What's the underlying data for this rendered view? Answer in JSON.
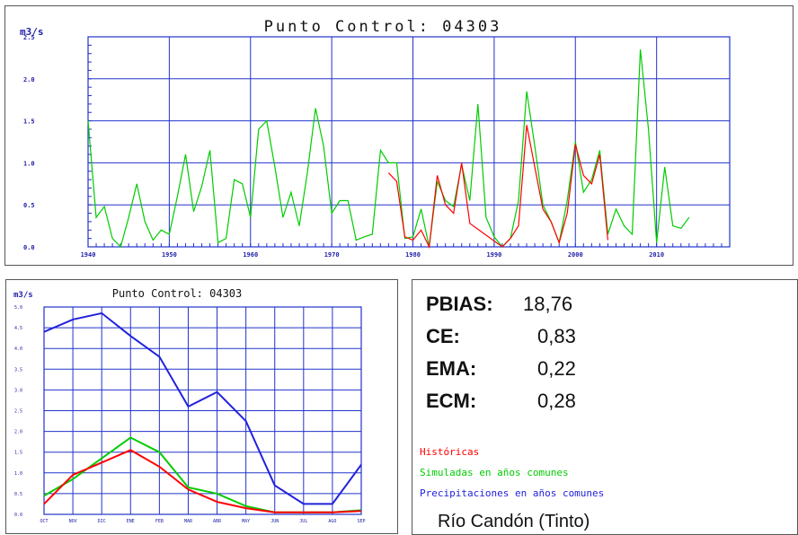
{
  "chart_data": [
    {
      "type": "line",
      "title": "Punto Control: 04303",
      "ylabel": "m3/s",
      "xlabel": "",
      "xlim": [
        1940,
        2019
      ],
      "ylim": [
        0,
        2.5
      ],
      "y_ticks": [
        "0.0",
        "0.5",
        "1.0",
        "1.5",
        "2.0",
        "2.5"
      ],
      "x_ticks": [
        "1940",
        "1950",
        "1960",
        "1970",
        "1980",
        "1990",
        "2000",
        "2010"
      ],
      "grid": true,
      "series": [
        {
          "color": "#00cc00",
          "points": [
            [
              1940,
              1.5
            ],
            [
              1941,
              0.35
            ],
            [
              1942,
              0.48
            ],
            [
              1943,
              0.1
            ],
            [
              1944,
              0.0
            ],
            [
              1945,
              0.35
            ],
            [
              1946,
              0.75
            ],
            [
              1947,
              0.3
            ],
            [
              1948,
              0.08
            ],
            [
              1949,
              0.2
            ],
            [
              1950,
              0.15
            ],
            [
              1951,
              0.6
            ],
            [
              1952,
              1.1
            ],
            [
              1953,
              0.42
            ],
            [
              1954,
              0.72
            ],
            [
              1955,
              1.15
            ],
            [
              1956,
              0.05
            ],
            [
              1957,
              0.1
            ],
            [
              1958,
              0.8
            ],
            [
              1959,
              0.75
            ],
            [
              1960,
              0.35
            ],
            [
              1961,
              1.4
            ],
            [
              1962,
              1.5
            ],
            [
              1963,
              0.95
            ],
            [
              1964,
              0.35
            ],
            [
              1965,
              0.65
            ],
            [
              1966,
              0.25
            ],
            [
              1967,
              0.88
            ],
            [
              1968,
              1.65
            ],
            [
              1969,
              1.2
            ],
            [
              1970,
              0.4
            ],
            [
              1971,
              0.55
            ],
            [
              1972,
              0.55
            ],
            [
              1973,
              0.08
            ],
            [
              1974,
              0.12
            ],
            [
              1975,
              0.15
            ],
            [
              1976,
              1.15
            ],
            [
              1977,
              1.0
            ],
            [
              1978,
              1.0
            ],
            [
              1979,
              0.1
            ],
            [
              1980,
              0.12
            ],
            [
              1981,
              0.45
            ],
            [
              1982,
              0.0
            ],
            [
              1983,
              0.78
            ],
            [
              1984,
              0.55
            ],
            [
              1985,
              0.48
            ],
            [
              1986,
              0.98
            ],
            [
              1987,
              0.55
            ],
            [
              1988,
              1.7
            ],
            [
              1989,
              0.35
            ],
            [
              1990,
              0.12
            ],
            [
              1991,
              0.0
            ],
            [
              1992,
              0.1
            ],
            [
              1993,
              0.55
            ],
            [
              1994,
              1.85
            ],
            [
              1995,
              1.2
            ],
            [
              1996,
              0.5
            ],
            [
              1997,
              0.3
            ],
            [
              1998,
              0.05
            ],
            [
              1999,
              0.55
            ],
            [
              2000,
              1.25
            ],
            [
              2001,
              0.65
            ],
            [
              2002,
              0.8
            ],
            [
              2003,
              1.15
            ],
            [
              2004,
              0.15
            ],
            [
              2005,
              0.45
            ],
            [
              2006,
              0.25
            ],
            [
              2007,
              0.15
            ],
            [
              2008,
              2.35
            ],
            [
              2009,
              1.4
            ],
            [
              2010,
              0.05
            ],
            [
              2011,
              0.95
            ],
            [
              2012,
              0.25
            ],
            [
              2013,
              0.22
            ],
            [
              2014,
              0.35
            ]
          ]
        },
        {
          "color": "#ff0000",
          "points": [
            [
              1977,
              0.88
            ],
            [
              1978,
              0.78
            ],
            [
              1979,
              0.12
            ],
            [
              1980,
              0.08
            ],
            [
              1981,
              0.2
            ],
            [
              1982,
              0.0
            ],
            [
              1983,
              0.85
            ],
            [
              1984,
              0.5
            ],
            [
              1985,
              0.4
            ],
            [
              1986,
              1.0
            ],
            [
              1987,
              0.28
            ],
            [
              1991,
              0.0
            ],
            [
              1992,
              0.1
            ],
            [
              1993,
              0.25
            ],
            [
              1994,
              1.45
            ],
            [
              1995,
              0.95
            ],
            [
              1996,
              0.45
            ],
            [
              1997,
              0.3
            ],
            [
              1998,
              0.05
            ],
            [
              1999,
              0.4
            ],
            [
              2000,
              1.22
            ],
            [
              2001,
              0.85
            ],
            [
              2002,
              0.75
            ],
            [
              2003,
              1.1
            ],
            [
              2004,
              0.08
            ]
          ]
        }
      ]
    },
    {
      "type": "line",
      "title": "Punto Control: 04303",
      "ylabel": "m3/s",
      "categories": [
        "OCT",
        "NOV",
        "DIC",
        "ENE",
        "FEB",
        "MAR",
        "ABR",
        "MAY",
        "JUN",
        "JUL",
        "AGO",
        "SEP"
      ],
      "ylim": [
        0,
        5.0
      ],
      "y_ticks": [
        "0.0",
        "0.5",
        "1.0",
        "1.5",
        "2.0",
        "2.5",
        "3.0",
        "3.5",
        "4.0",
        "4.5",
        "5.0"
      ],
      "grid": true,
      "series": [
        {
          "name": "Precipitaciones en años comunes",
          "color": "#2222dd",
          "values": [
            4.4,
            4.7,
            4.85,
            4.3,
            3.8,
            2.6,
            2.95,
            2.25,
            0.7,
            0.25,
            0.25,
            1.2
          ]
        },
        {
          "name": "Simuladas en años comunes",
          "color": "#00cc00",
          "values": [
            0.45,
            0.85,
            1.35,
            1.85,
            1.5,
            0.65,
            0.5,
            0.2,
            0.05,
            0.05,
            0.05,
            0.1
          ]
        },
        {
          "name": "Históricas",
          "color": "#ff0000",
          "values": [
            0.25,
            0.95,
            1.25,
            1.55,
            1.15,
            0.6,
            0.3,
            0.15,
            0.05,
            0.05,
            0.05,
            0.08
          ]
        }
      ]
    }
  ],
  "stats": [
    {
      "label": "PBIAS:",
      "value": "18,76"
    },
    {
      "label": "CE:",
      "value": "0,83"
    },
    {
      "label": "EMA:",
      "value": "0,22"
    },
    {
      "label": "ECM:",
      "value": "0,28"
    }
  ],
  "legend": {
    "historicas": "Históricas",
    "simuladas": "Simuladas en años comunes",
    "precipitaciones": "Precipitaciones en años comunes",
    "colors": {
      "historicas": "#ff0000",
      "simuladas": "#00cc00",
      "precipitaciones": "#2222dd"
    }
  },
  "river_name": "Río Candón (Tinto)"
}
